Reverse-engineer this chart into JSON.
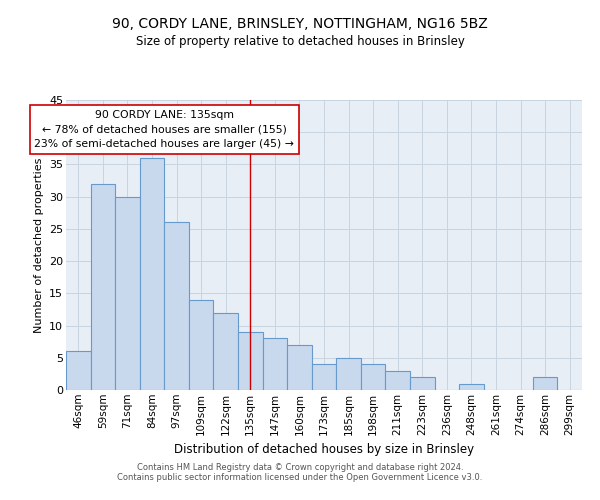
{
  "title1": "90, CORDY LANE, BRINSLEY, NOTTINGHAM, NG16 5BZ",
  "title2": "Size of property relative to detached houses in Brinsley",
  "xlabel": "Distribution of detached houses by size in Brinsley",
  "ylabel": "Number of detached properties",
  "categories": [
    "46sqm",
    "59sqm",
    "71sqm",
    "84sqm",
    "97sqm",
    "109sqm",
    "122sqm",
    "135sqm",
    "147sqm",
    "160sqm",
    "173sqm",
    "185sqm",
    "198sqm",
    "211sqm",
    "223sqm",
    "236sqm",
    "248sqm",
    "261sqm",
    "274sqm",
    "286sqm",
    "299sqm"
  ],
  "values": [
    6,
    32,
    30,
    36,
    26,
    14,
    12,
    9,
    8,
    7,
    4,
    5,
    4,
    3,
    2,
    0,
    1,
    0,
    0,
    2,
    0
  ],
  "bar_color": "#c8d9ee",
  "bar_edge_color": "#6699cc",
  "highlight_line_index": 7,
  "annotation_title": "90 CORDY LANE: 135sqm",
  "annotation_line1": "← 78% of detached houses are smaller (155)",
  "annotation_line2": "23% of semi-detached houses are larger (45) →",
  "ylim": [
    0,
    45
  ],
  "yticks": [
    0,
    5,
    10,
    15,
    20,
    25,
    30,
    35,
    40,
    45
  ],
  "footer1": "Contains HM Land Registry data © Crown copyright and database right 2024.",
  "footer2": "Contains public sector information licensed under the Open Government Licence v3.0.",
  "bg_color": "#ffffff",
  "plot_bg_color": "#e8eef5",
  "grid_color": "#c8d4e0"
}
